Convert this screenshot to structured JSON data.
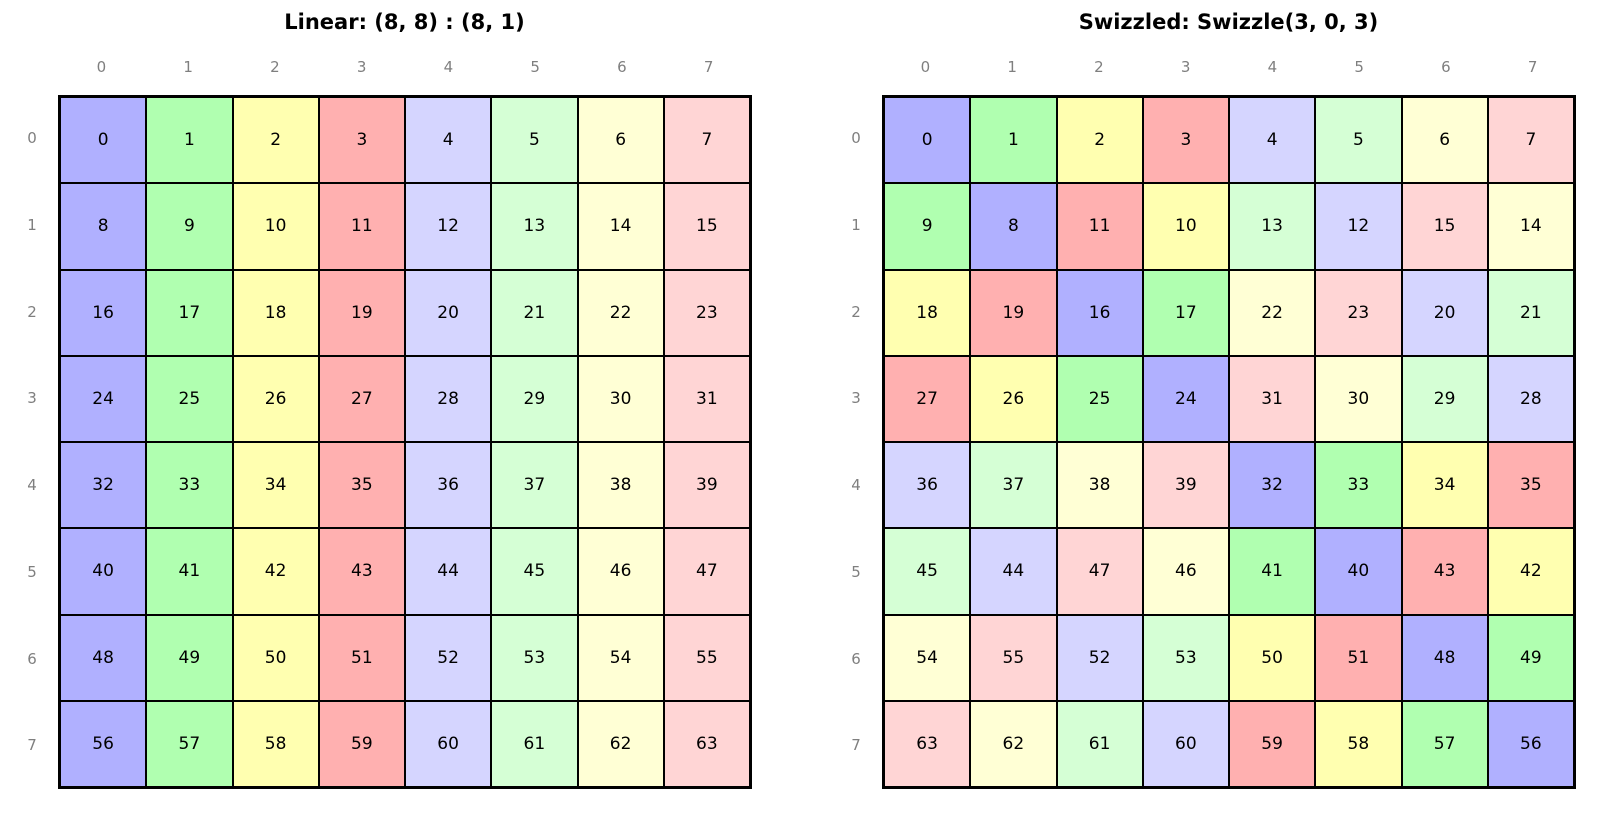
{
  "palette": [
    "#b0b0ff",
    "#b0ffb0",
    "#ffffb0",
    "#ffb0b0",
    "#d5d5ff",
    "#d5ffd5",
    "#ffffd5",
    "#ffd5d5"
  ],
  "panels": [
    {
      "title": "Linear: (8, 8) : (8, 1)",
      "col_labels": [
        "0",
        "1",
        "2",
        "3",
        "4",
        "5",
        "6",
        "7"
      ],
      "row_labels": [
        "0",
        "1",
        "2",
        "3",
        "4",
        "5",
        "6",
        "7"
      ],
      "cells": [
        [
          "0",
          "1",
          "2",
          "3",
          "4",
          "5",
          "6",
          "7"
        ],
        [
          "8",
          "9",
          "10",
          "11",
          "12",
          "13",
          "14",
          "15"
        ],
        [
          "16",
          "17",
          "18",
          "19",
          "20",
          "21",
          "22",
          "23"
        ],
        [
          "24",
          "25",
          "26",
          "27",
          "28",
          "29",
          "30",
          "31"
        ],
        [
          "32",
          "33",
          "34",
          "35",
          "36",
          "37",
          "38",
          "39"
        ],
        [
          "40",
          "41",
          "42",
          "43",
          "44",
          "45",
          "46",
          "47"
        ],
        [
          "48",
          "49",
          "50",
          "51",
          "52",
          "53",
          "54",
          "55"
        ],
        [
          "56",
          "57",
          "58",
          "59",
          "60",
          "61",
          "62",
          "63"
        ]
      ]
    },
    {
      "title": "Swizzled: Swizzle(3, 0, 3)",
      "col_labels": [
        "0",
        "1",
        "2",
        "3",
        "4",
        "5",
        "6",
        "7"
      ],
      "row_labels": [
        "0",
        "1",
        "2",
        "3",
        "4",
        "5",
        "6",
        "7"
      ],
      "cells": [
        [
          "0",
          "1",
          "2",
          "3",
          "4",
          "5",
          "6",
          "7"
        ],
        [
          "9",
          "8",
          "11",
          "10",
          "13",
          "12",
          "15",
          "14"
        ],
        [
          "18",
          "19",
          "16",
          "17",
          "22",
          "23",
          "20",
          "21"
        ],
        [
          "27",
          "26",
          "25",
          "24",
          "31",
          "30",
          "29",
          "28"
        ],
        [
          "36",
          "37",
          "38",
          "39",
          "32",
          "33",
          "34",
          "35"
        ],
        [
          "45",
          "44",
          "47",
          "46",
          "41",
          "40",
          "43",
          "42"
        ],
        [
          "54",
          "55",
          "52",
          "53",
          "50",
          "51",
          "48",
          "49"
        ],
        [
          "63",
          "62",
          "61",
          "60",
          "59",
          "58",
          "57",
          "56"
        ]
      ]
    }
  ]
}
